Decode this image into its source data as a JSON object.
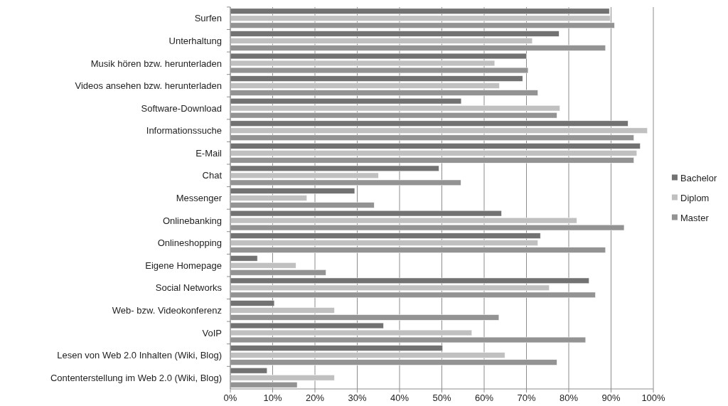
{
  "chart_data": {
    "type": "bar",
    "orientation": "horizontal",
    "categories": [
      "Surfen",
      "Unterhaltung",
      "Musik hören bzw. herunterladen",
      "Videos ansehen bzw. herunterladen",
      "Software-Download",
      "Informationssuche",
      "E-Mail",
      "Chat",
      "Messenger",
      "Onlinebanking",
      "Onlineshopping",
      "Eigene Homepage",
      "Social Networks",
      "Web- bzw. Videokonferenz",
      "VoIP",
      "Lesen von Web 2.0 Inhalten (Wiki, Blog)",
      "Contenterstellung im Web 2.0  (Wiki, Blog)"
    ],
    "series": [
      {
        "name": "Bachelor",
        "color": "#727272",
        "values": [
          89.6,
          77.7,
          70.0,
          69.1,
          54.6,
          94.0,
          96.9,
          49.3,
          29.4,
          64.1,
          73.3,
          6.4,
          84.8,
          10.4,
          36.2,
          50.2,
          8.7
        ]
      },
      {
        "name": "Diplom",
        "color": "#c0c0c0",
        "values": [
          89.8,
          71.4,
          62.5,
          63.6,
          77.9,
          98.6,
          96.1,
          35.0,
          18.1,
          81.9,
          72.7,
          15.5,
          75.4,
          24.6,
          57.1,
          64.9,
          24.6
        ]
      },
      {
        "name": "Master",
        "color": "#939393",
        "values": [
          90.8,
          88.7,
          70.4,
          72.7,
          77.2,
          95.4,
          95.4,
          54.5,
          34.0,
          93.1,
          88.7,
          22.6,
          86.3,
          63.5,
          84.0,
          77.2,
          15.8
        ]
      }
    ],
    "xlim": [
      0,
      100
    ],
    "xticks": [
      {
        "value": 0,
        "label": "0%"
      },
      {
        "value": 10,
        "label": "10%"
      },
      {
        "value": 20,
        "label": "20%"
      },
      {
        "value": 30,
        "label": "30%"
      },
      {
        "value": 40,
        "label": "40%"
      },
      {
        "value": 50,
        "label": "50%"
      },
      {
        "value": 60,
        "label": "60%"
      },
      {
        "value": 70,
        "label": "70%"
      },
      {
        "value": 80,
        "label": "80%"
      },
      {
        "value": 90,
        "label": "90%"
      },
      {
        "value": 100,
        "label": "100%"
      }
    ],
    "grid": "x",
    "legend": "right"
  }
}
